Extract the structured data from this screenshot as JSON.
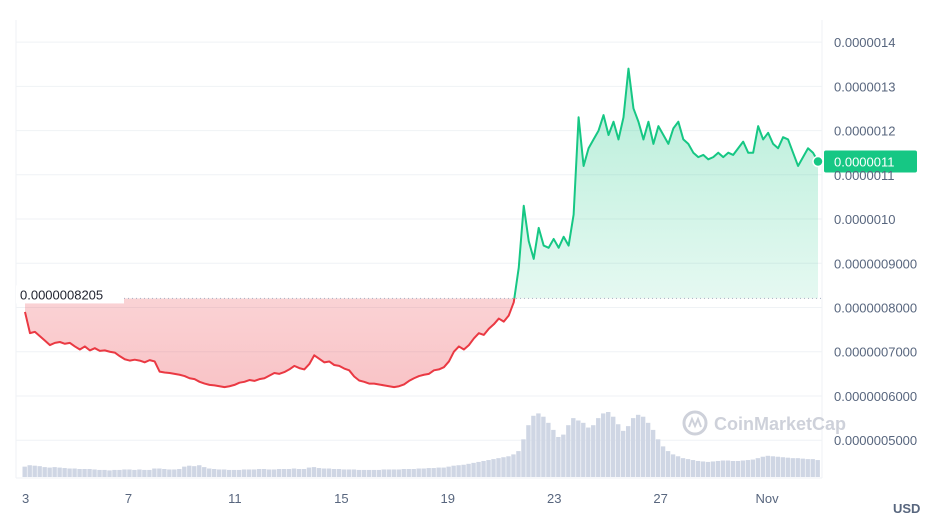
{
  "chart_data": {
    "type": "line",
    "y_axis": {
      "position": "right",
      "ticks": [
        "0.0000014",
        "0.0000013",
        "0.0000012",
        "0.0000011",
        "0.0000010",
        "0.0000009000",
        "0.0000008000",
        "0.0000007000",
        "0.0000006000",
        "0.0000005000"
      ],
      "range": [
        4.1e-07,
        1.45e-06
      ]
    },
    "x_axis": {
      "ticks": [
        "3",
        "7",
        "11",
        "15",
        "19",
        "23",
        "27",
        "Nov"
      ]
    },
    "currency_label": "USD",
    "reference_line": {
      "value": 8.205e-07,
      "label": "0.0000008205"
    },
    "current_price": {
      "value": 1.13e-06,
      "label": "0.0000011"
    },
    "watermark": "CoinMarketCap",
    "colors": {
      "up": "#16c784",
      "down": "#ea3943",
      "volume": "#cfd6e4"
    },
    "series": [
      {
        "values": [
          7.9e-07,
          7.42e-07,
          7.45e-07,
          7.35e-07,
          7.25e-07,
          7.15e-07,
          7.2e-07,
          7.22e-07,
          7.18e-07,
          7.2e-07,
          7.12e-07,
          7.05e-07,
          7.12e-07,
          7.03e-07,
          7.08e-07,
          7.02e-07,
          7.03e-07,
          7e-07,
          6.98e-07,
          6.9e-07,
          6.83e-07,
          6.8e-07,
          6.82e-07,
          6.8e-07,
          6.76e-07,
          6.81e-07,
          6.78e-07,
          6.55e-07,
          6.53e-07,
          6.52e-07,
          6.5e-07,
          6.48e-07,
          6.45e-07,
          6.4e-07,
          6.38e-07,
          6.32e-07,
          6.28e-07,
          6.25e-07,
          6.24e-07,
          6.22e-07,
          6.2e-07,
          6.22e-07,
          6.25e-07,
          6.3e-07,
          6.32e-07,
          6.36e-07,
          6.34e-07,
          6.38e-07,
          6.4e-07,
          6.46e-07,
          6.52e-07,
          6.5e-07,
          6.54e-07,
          6.6e-07,
          6.68e-07,
          6.63e-07,
          6.6e-07,
          6.72e-07,
          6.92e-07,
          6.84e-07,
          6.76e-07,
          6.78e-07,
          6.7e-07,
          6.68e-07,
          6.62e-07,
          6.58e-07,
          6.44e-07,
          6.35e-07,
          6.32e-07,
          6.28e-07,
          6.28e-07,
          6.26e-07,
          6.24e-07,
          6.22e-07,
          6.2e-07,
          6.22e-07,
          6.26e-07,
          6.34e-07,
          6.4e-07,
          6.45e-07,
          6.48e-07,
          6.5e-07,
          6.58e-07,
          6.6e-07,
          6.65e-07,
          6.78e-07,
          7e-07,
          7.12e-07,
          7.05e-07,
          7.15e-07,
          7.3e-07,
          7.42e-07,
          7.38e-07,
          7.52e-07,
          7.62e-07,
          7.75e-07,
          7.68e-07,
          7.82e-07,
          8.12e-07,
          8.9e-07,
          1.03e-06,
          9.5e-07,
          9.1e-07,
          9.8e-07,
          9.4e-07,
          9.35e-07,
          9.55e-07,
          9.35e-07,
          9.6e-07,
          9.4e-07,
          1.01e-06,
          1.23e-06,
          1.12e-06,
          1.16e-06,
          1.18e-06,
          1.2e-06,
          1.235e-06,
          1.19e-06,
          1.22e-06,
          1.18e-06,
          1.23e-06,
          1.34e-06,
          1.25e-06,
          1.22e-06,
          1.18e-06,
          1.22e-06,
          1.17e-06,
          1.21e-06,
          1.19e-06,
          1.17e-06,
          1.205e-06,
          1.22e-06,
          1.18e-06,
          1.17e-06,
          1.15e-06,
          1.14e-06,
          1.145e-06,
          1.135e-06,
          1.14e-06,
          1.15e-06,
          1.14e-06,
          1.15e-06,
          1.145e-06,
          1.16e-06,
          1.175e-06,
          1.15e-06,
          1.15e-06,
          1.21e-06,
          1.18e-06,
          1.195e-06,
          1.17e-06,
          1.16e-06,
          1.185e-06,
          1.18e-06,
          1.15e-06,
          1.12e-06,
          1.14e-06,
          1.16e-06,
          1.15e-06,
          1.13e-06
        ]
      },
      {
        "name": "volume",
        "values": [
          22,
          25,
          24,
          23,
          21,
          20,
          21,
          20,
          19,
          18,
          18,
          17,
          17,
          17,
          16,
          15,
          15,
          14,
          15,
          15,
          16,
          16,
          15,
          16,
          15,
          15,
          18,
          18,
          17,
          16,
          16,
          17,
          22,
          24,
          23,
          25,
          21,
          18,
          17,
          16,
          16,
          15,
          15,
          15,
          16,
          16,
          16,
          17,
          17,
          16,
          16,
          17,
          17,
          17,
          18,
          17,
          17,
          20,
          21,
          19,
          18,
          18,
          17,
          17,
          16,
          16,
          16,
          15,
          15,
          15,
          15,
          15,
          16,
          16,
          16,
          16,
          17,
          17,
          17,
          18,
          18,
          19,
          19,
          20,
          20,
          22,
          24,
          25,
          26,
          28,
          30,
          32,
          34,
          36,
          38,
          40,
          42,
          44,
          48,
          55,
          80,
          110,
          130,
          135,
          128,
          115,
          100,
          85,
          90,
          110,
          125,
          120,
          115,
          105,
          110,
          125,
          135,
          138,
          128,
          112,
          98,
          108,
          125,
          132,
          128,
          115,
          100,
          80,
          65,
          55,
          48,
          44,
          40,
          38,
          36,
          34,
          33,
          32,
          33,
          34,
          35,
          35,
          34,
          34,
          35,
          36,
          37,
          40,
          43,
          45,
          44,
          43,
          42,
          41,
          40,
          40,
          39,
          38,
          38,
          36
        ]
      }
    ]
  }
}
